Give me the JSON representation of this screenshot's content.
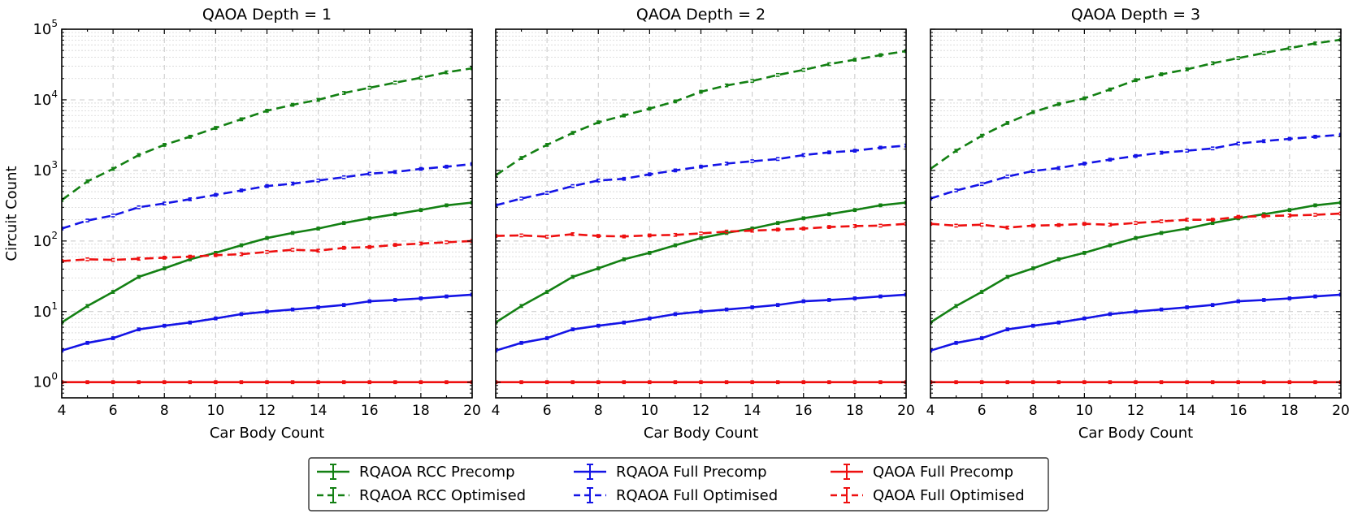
{
  "chart_data": [
    {
      "type": "line",
      "title": "QAOA Depth = 1",
      "xlabel": "Car Body Count",
      "ylabel": "Circuit Count",
      "yscale": "log",
      "xlim": [
        4,
        20
      ],
      "ylim": [
        0.6,
        100000
      ],
      "x": [
        4,
        5,
        6,
        7,
        8,
        9,
        10,
        11,
        12,
        13,
        14,
        15,
        16,
        17,
        18,
        19,
        20
      ],
      "series": [
        {
          "name": "RQAOA RCC Precomp",
          "key": "rcc_pre",
          "values": [
            7,
            12,
            19,
            31,
            41,
            55,
            68,
            87,
            110,
            130,
            150,
            180,
            210,
            240,
            275,
            320,
            350
          ]
        },
        {
          "name": "RQAOA RCC Optimised",
          "key": "rcc_opt",
          "values": [
            380,
            700,
            1050,
            1650,
            2300,
            3000,
            4000,
            5300,
            7000,
            8500,
            10000,
            12500,
            14800,
            17500,
            20500,
            24500,
            28000
          ]
        },
        {
          "name": "RQAOA Full Precomp",
          "key": "full_pre",
          "values": [
            2.8,
            3.6,
            4.2,
            5.6,
            6.3,
            7,
            8,
            9.2,
            10,
            10.7,
            11.5,
            12.4,
            14,
            14.6,
            15.4,
            16.4,
            17.4
          ]
        },
        {
          "name": "RQAOA Full Optimised",
          "key": "full_opt",
          "values": [
            150,
            195,
            230,
            300,
            340,
            390,
            450,
            520,
            600,
            650,
            720,
            800,
            900,
            950,
            1050,
            1130,
            1230
          ]
        },
        {
          "name": "QAOA Full Precomp",
          "key": "qaoa_pre",
          "values": [
            1,
            1,
            1,
            1,
            1,
            1,
            1,
            1,
            1,
            1,
            1,
            1,
            1,
            1,
            1,
            1,
            1
          ]
        },
        {
          "name": "QAOA Full Optimised",
          "key": "qaoa_opt",
          "values": [
            52,
            55,
            54,
            56,
            58,
            60,
            63,
            65,
            70,
            75,
            73,
            80,
            82,
            88,
            92,
            96,
            100
          ]
        }
      ]
    },
    {
      "type": "line",
      "title": "QAOA Depth = 2",
      "xlabel": "Car Body Count",
      "ylabel": "",
      "yscale": "log",
      "xlim": [
        4,
        20
      ],
      "ylim": [
        0.6,
        100000
      ],
      "x": [
        4,
        5,
        6,
        7,
        8,
        9,
        10,
        11,
        12,
        13,
        14,
        15,
        16,
        17,
        18,
        19,
        20
      ],
      "series": [
        {
          "name": "RQAOA RCC Precomp",
          "key": "rcc_pre",
          "values": [
            7,
            12,
            19,
            31,
            41,
            55,
            68,
            87,
            110,
            130,
            150,
            180,
            210,
            240,
            275,
            320,
            350
          ]
        },
        {
          "name": "RQAOA RCC Optimised",
          "key": "rcc_opt",
          "values": [
            850,
            1500,
            2300,
            3400,
            4800,
            6000,
            7500,
            9500,
            13000,
            16000,
            18500,
            22500,
            26500,
            32000,
            37000,
            43000,
            49000
          ]
        },
        {
          "name": "RQAOA Full Precomp",
          "key": "full_pre",
          "values": [
            2.8,
            3.6,
            4.2,
            5.6,
            6.3,
            7,
            8,
            9.2,
            10,
            10.7,
            11.5,
            12.4,
            14,
            14.6,
            15.4,
            16.4,
            17.4
          ]
        },
        {
          "name": "RQAOA Full Optimised",
          "key": "full_opt",
          "values": [
            320,
            400,
            480,
            600,
            720,
            760,
            880,
            1000,
            1130,
            1250,
            1350,
            1450,
            1650,
            1800,
            1900,
            2100,
            2250
          ]
        },
        {
          "name": "QAOA Full Precomp",
          "key": "qaoa_pre",
          "values": [
            1,
            1,
            1,
            1,
            1,
            1,
            1,
            1,
            1,
            1,
            1,
            1,
            1,
            1,
            1,
            1,
            1
          ]
        },
        {
          "name": "QAOA Full Optimised",
          "key": "qaoa_opt",
          "values": [
            118,
            120,
            115,
            125,
            118,
            116,
            120,
            122,
            128,
            136,
            140,
            145,
            150,
            158,
            163,
            165,
            175
          ]
        }
      ]
    },
    {
      "type": "line",
      "title": "QAOA Depth = 3",
      "xlabel": "Car Body Count",
      "ylabel": "",
      "yscale": "log",
      "xlim": [
        4,
        20
      ],
      "ylim": [
        0.6,
        100000
      ],
      "x": [
        4,
        5,
        6,
        7,
        8,
        9,
        10,
        11,
        12,
        13,
        14,
        15,
        16,
        17,
        18,
        19,
        20
      ],
      "series": [
        {
          "name": "RQAOA RCC Precomp",
          "key": "rcc_pre",
          "values": [
            7,
            12,
            19,
            31,
            41,
            55,
            68,
            87,
            110,
            130,
            150,
            180,
            210,
            240,
            275,
            320,
            350
          ]
        },
        {
          "name": "RQAOA RCC Optimised",
          "key": "rcc_opt",
          "values": [
            1050,
            1900,
            3100,
            4700,
            6700,
            8700,
            10500,
            14000,
            19000,
            23000,
            27000,
            33000,
            39000,
            46000,
            54000,
            63000,
            71000
          ]
        },
        {
          "name": "RQAOA Full Precomp",
          "key": "full_pre",
          "values": [
            2.8,
            3.6,
            4.2,
            5.6,
            6.3,
            7,
            8,
            9.2,
            10,
            10.7,
            11.5,
            12.4,
            14,
            14.6,
            15.4,
            16.4,
            17.4
          ]
        },
        {
          "name": "RQAOA Full Optimised",
          "key": "full_opt",
          "values": [
            400,
            520,
            640,
            820,
            980,
            1080,
            1250,
            1420,
            1600,
            1780,
            1900,
            2050,
            2400,
            2600,
            2800,
            3000,
            3200
          ]
        },
        {
          "name": "QAOA Full Precomp",
          "key": "qaoa_pre",
          "values": [
            1,
            1,
            1,
            1,
            1,
            1,
            1,
            1,
            1,
            1,
            1,
            1,
            1,
            1,
            1,
            1,
            1
          ]
        },
        {
          "name": "QAOA Full Optimised",
          "key": "qaoa_opt",
          "values": [
            175,
            165,
            170,
            155,
            165,
            168,
            175,
            170,
            180,
            190,
            200,
            200,
            220,
            225,
            230,
            235,
            245
          ]
        }
      ]
    }
  ],
  "xticks": [
    4,
    6,
    8,
    10,
    12,
    14,
    16,
    18,
    20
  ],
  "yticks": [
    {
      "value": 1,
      "base": "10",
      "exp": "0"
    },
    {
      "value": 10,
      "base": "10",
      "exp": "1"
    },
    {
      "value": 100,
      "base": "10",
      "exp": "2"
    },
    {
      "value": 1000,
      "base": "10",
      "exp": "3"
    },
    {
      "value": 10000,
      "base": "10",
      "exp": "4"
    },
    {
      "value": 100000,
      "base": "10",
      "exp": "5"
    }
  ],
  "legend": {
    "placement": "bottom-center",
    "entries": [
      {
        "label": "RQAOA RCC Precomp",
        "color": "#138013",
        "dashed": false
      },
      {
        "label": "RQAOA Full Precomp",
        "color": "#1414e6",
        "dashed": false
      },
      {
        "label": "QAOA Full Precomp",
        "color": "#ee1010",
        "dashed": false
      },
      {
        "label": "RQAOA RCC Optimised",
        "color": "#138013",
        "dashed": true
      },
      {
        "label": "RQAOA Full Optimised",
        "color": "#1414e6",
        "dashed": true
      },
      {
        "label": "QAOA Full Optimised",
        "color": "#ee1010",
        "dashed": true
      }
    ]
  },
  "colors": {
    "rcc_pre": "#138013",
    "rcc_opt": "#138013",
    "full_pre": "#1414e6",
    "full_opt": "#1414e6",
    "qaoa_pre": "#ee1010",
    "qaoa_opt": "#ee1010"
  }
}
